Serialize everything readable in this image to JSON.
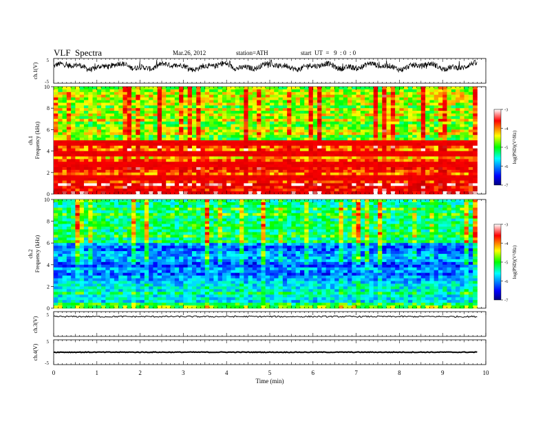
{
  "header": {
    "title": "VLF  Spectra",
    "date": "Mar.26, 2012",
    "station": "station=ATH",
    "start_ut": "start  UT  =   9  : 0  : 0"
  },
  "chart_data": [
    {
      "type": "line",
      "panel": "ch1-waveform",
      "ylabel": "ch.1(V)",
      "ylim": [
        -5,
        5
      ],
      "yticks": [
        "5",
        "-5"
      ],
      "xlim": [
        0,
        10
      ],
      "approx_envelope": {
        "mean": 1.8,
        "spread": 1.5,
        "bursts": "frequent spikes to ~3.5 and down to ~-1"
      }
    },
    {
      "type": "heatmap",
      "panel": "ch1-spectrogram",
      "ylabel_top": "ch.1",
      "ylabel": "Frequency  (kHz)",
      "ylim": [
        0,
        10
      ],
      "yticks": [
        "0",
        "2",
        "4",
        "6",
        "8",
        "10"
      ],
      "xlim": [
        0,
        9.8
      ],
      "colorbar": {
        "label": "log(PSD)(V²/Hz)",
        "ticks": [
          "-3",
          "-4",
          "-5",
          "-6",
          "-7"
        ],
        "range": [
          -7,
          -3
        ]
      },
      "approx_levels": {
        "0-1 kHz": -3.5,
        "1-3.3 kHz": -3.8,
        "3.3-5 kHz": -4.3,
        "5-10 kHz": -4.8
      },
      "notes": "strong red horizontal lines near 1.5, 2.8, 3.8 and 4.8 kHz; vertical bursts throughout"
    },
    {
      "type": "heatmap",
      "panel": "ch2-spectrogram",
      "ylabel_top": "ch.2",
      "ylabel": "Frequency  (kHz)",
      "ylim": [
        0,
        10
      ],
      "yticks": [
        "0",
        "2",
        "4",
        "6",
        "8",
        "10"
      ],
      "xlim": [
        0,
        9.8
      ],
      "colorbar": {
        "label": "log(PSD)(V²/Hz)",
        "ticks": [
          "-3",
          "-4",
          "-5",
          "-6",
          "-7"
        ],
        "range": [
          -7,
          -3
        ]
      },
      "approx_levels": {
        "0-0.5 kHz": -5.2,
        "0.5-2.5 kHz": -5.6,
        "2.5-6 kHz": -6.0,
        "6-10 kHz": -5.3
      },
      "notes": "blue bands 2.5-6 kHz, green/yellow above 6 kHz with vertical spikes"
    },
    {
      "type": "line",
      "panel": "ch3-waveform",
      "ylabel": "ch.3(V)",
      "ylim": [
        -5,
        5
      ],
      "yticks": [
        "5"
      ],
      "xlim": [
        0,
        10
      ],
      "approx_level": 3.0
    },
    {
      "type": "line",
      "panel": "ch4-waveform",
      "ylabel": "ch.4(V)",
      "ylim": [
        -5,
        5
      ],
      "yticks": [
        "5",
        "-5"
      ],
      "xlim": [
        0,
        10
      ],
      "approx_level": 0.0,
      "xlabel": "Time  (min)",
      "xticks": [
        "0",
        "1",
        "2",
        "3",
        "4",
        "5",
        "6",
        "7",
        "8",
        "9",
        "10"
      ]
    }
  ],
  "colors": {
    "lowest": "#00007f",
    "low": "#0000ff",
    "mid_low": "#00ffff",
    "mid": "#00ff00",
    "mid_high": "#ffff00",
    "high": "#ff0000",
    "highest": "#ffffff"
  }
}
